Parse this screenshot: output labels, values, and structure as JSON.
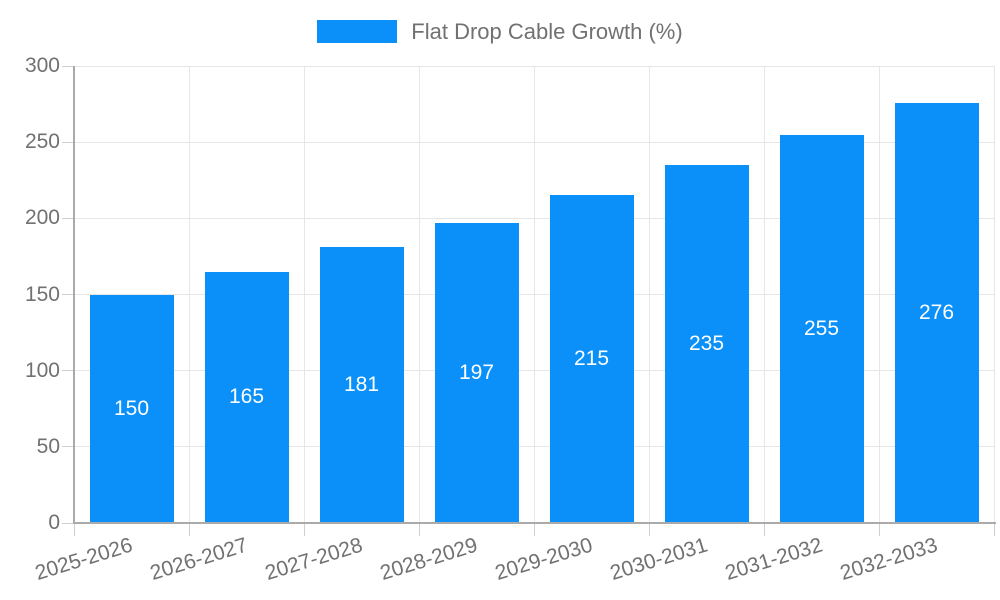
{
  "legend": {
    "label": "Flat Drop Cable Growth (%)"
  },
  "colors": {
    "bar": "#0a90f8",
    "grid": "#e6e6e6",
    "axis": "#aaaaaa",
    "tick": "#cfcfcf",
    "text": "#717171",
    "value_label": "#ffffff"
  },
  "chart_data": {
    "type": "bar",
    "title": "",
    "xlabel": "",
    "ylabel": "",
    "categories": [
      "2025-2026",
      "2026-2027",
      "2027-2028",
      "2028-2029",
      "2029-2030",
      "2030-2031",
      "2031-2032",
      "2032-2033"
    ],
    "series": [
      {
        "name": "Flat Drop Cable Growth (%)",
        "values": [
          150,
          165,
          181,
          197,
          215,
          235,
          255,
          276
        ]
      }
    ],
    "ylim": [
      0,
      300
    ],
    "yticks": [
      0,
      50,
      100,
      150,
      200,
      250,
      300
    ],
    "grid": true,
    "legend_position": "top",
    "value_labels": "inside-center",
    "x_label_rotation_deg": -17
  }
}
